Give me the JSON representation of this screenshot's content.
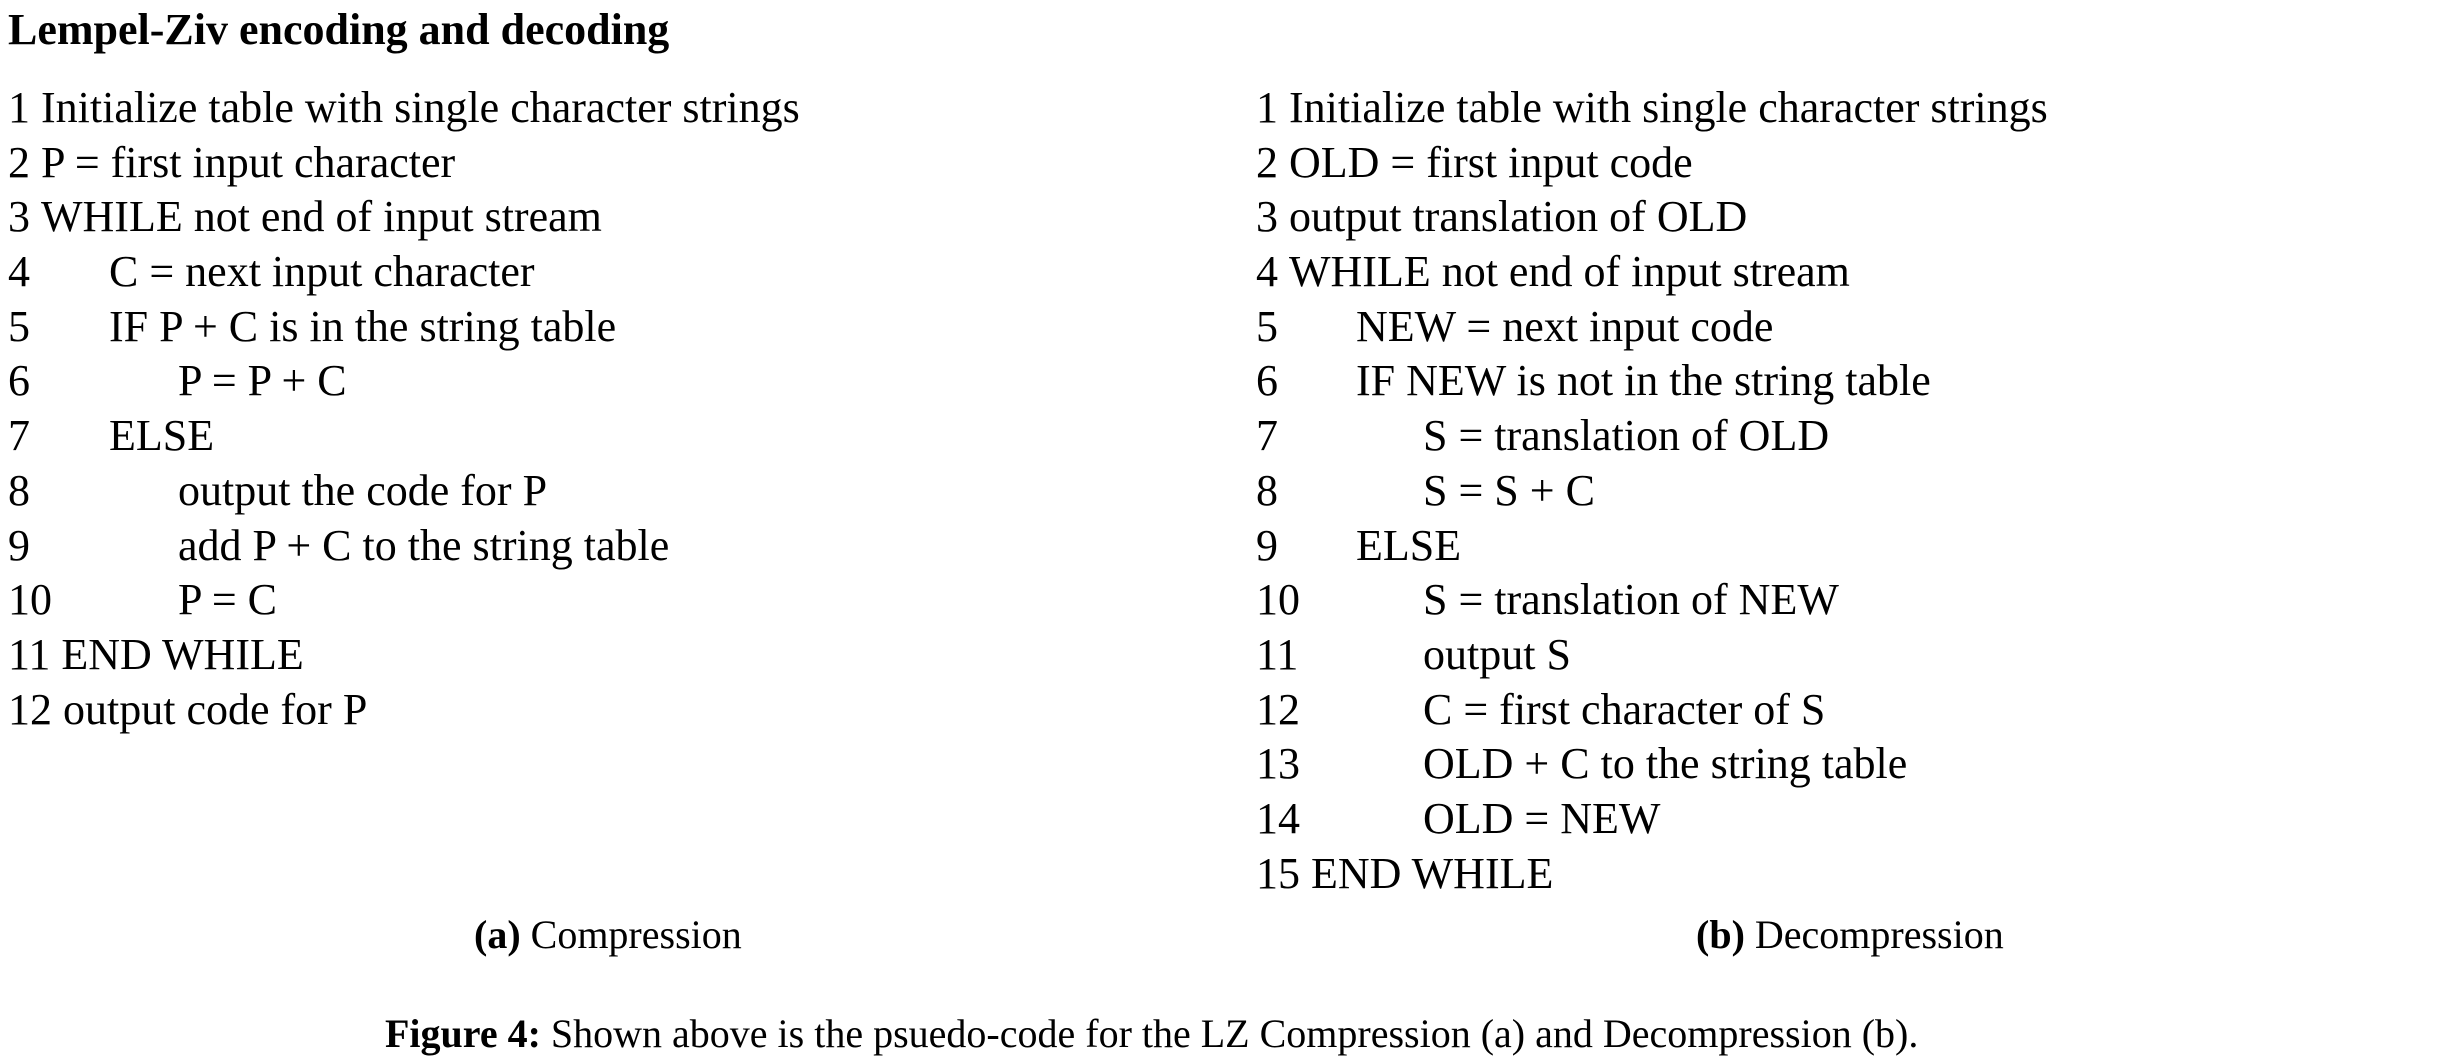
{
  "title": "Lempel-Ziv encoding and decoding",
  "compression": {
    "lines": [
      {
        "num": "1",
        "indent": 0,
        "text": "Initialize table with single character strings"
      },
      {
        "num": "2",
        "indent": 0,
        "text": "P = first input character"
      },
      {
        "num": "3",
        "indent": 0,
        "text": "WHILE not end of input stream"
      },
      {
        "num": "4",
        "indent": 1,
        "text": "C = next input character"
      },
      {
        "num": "5",
        "indent": 1,
        "text": "IF P + C is in the string table"
      },
      {
        "num": "6",
        "indent": 2,
        "text": "P = P + C"
      },
      {
        "num": "7",
        "indent": 1,
        "text": "ELSE"
      },
      {
        "num": "8",
        "indent": 2,
        "text": "output the code for P"
      },
      {
        "num": "9",
        "indent": 2,
        "text": "add P + C to the string table"
      },
      {
        "num": "10",
        "indent": 2,
        "text": "P = C"
      },
      {
        "num": "11",
        "indent": 0,
        "text": "END WHILE"
      },
      {
        "num": "12",
        "indent": 0,
        "text": "output code for P"
      }
    ],
    "caption_tag": "(a)",
    "caption_text": "Compression"
  },
  "decompression": {
    "lines": [
      {
        "num": "1",
        "indent": 0,
        "text": "Initialize table with single character strings"
      },
      {
        "num": "2",
        "indent": 0,
        "text": "OLD = first input code"
      },
      {
        "num": "3",
        "indent": 0,
        "text": "output translation of OLD"
      },
      {
        "num": "4",
        "indent": 0,
        "text": "WHILE not end of input stream"
      },
      {
        "num": "5",
        "indent": 1,
        "text": "NEW = next input code"
      },
      {
        "num": "6",
        "indent": 1,
        "text": "IF NEW is not in the string table"
      },
      {
        "num": "7",
        "indent": 2,
        "text": "S = translation of OLD"
      },
      {
        "num": "8",
        "indent": 2,
        "text": "S = S + C"
      },
      {
        "num": "9",
        "indent": 1,
        "text": "ELSE"
      },
      {
        "num": "10",
        "indent": 2,
        "text": "S = translation of NEW"
      },
      {
        "num": "11",
        "indent": 2,
        "text": "output S"
      },
      {
        "num": "12",
        "indent": 2,
        "text": "C = first character of S"
      },
      {
        "num": "13",
        "indent": 2,
        "text": "OLD + C to the string table"
      },
      {
        "num": "14",
        "indent": 2,
        "text": "OLD = NEW"
      },
      {
        "num": "15",
        "indent": 0,
        "text": "END WHILE"
      }
    ],
    "caption_tag": "(b)",
    "caption_text": "Decompression"
  },
  "figure_caption": {
    "tag": "Figure 4:",
    "text": "Shown above is the psuedo-code for the LZ Compression (a) and Decompression (b)."
  }
}
